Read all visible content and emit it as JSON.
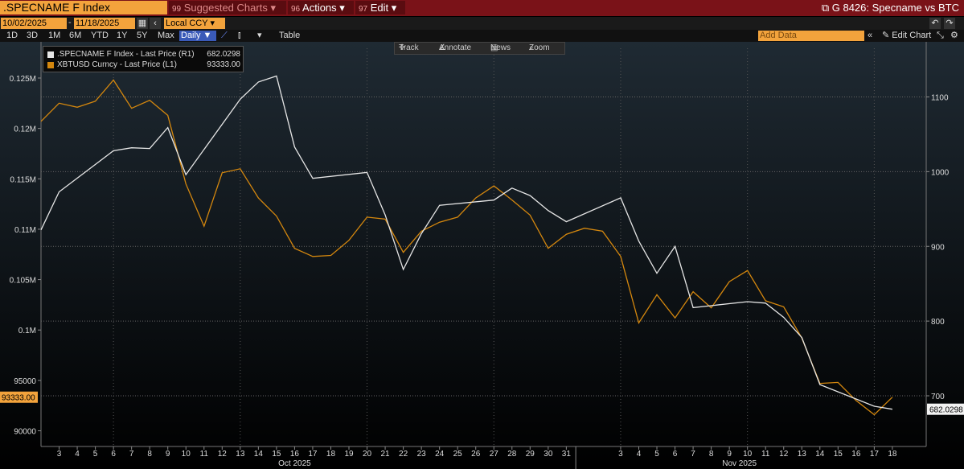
{
  "header": {
    "ticker": ".SPECNAME F Index",
    "suggested": {
      "num": "99",
      "label": "Suggested Charts"
    },
    "actions": {
      "num": "96",
      "label": "Actions"
    },
    "edit": {
      "num": "97",
      "label": "Edit"
    },
    "graph_title": "G 8426: Specname vs BTC"
  },
  "range": {
    "start": "10/02/2025",
    "sep": "-",
    "end": "11/18/2025",
    "currency": "Local CCY"
  },
  "periods": [
    "1D",
    "3D",
    "1M",
    "6M",
    "YTD",
    "1Y",
    "5Y",
    "Max"
  ],
  "frequency": "Daily",
  "table_label": "Table",
  "add_data_placeholder": "Add Data",
  "edit_chart_label": "Edit Chart",
  "tools": {
    "track": "Track",
    "annotate": "Annotate",
    "news": "News",
    "zoom": "Zoom"
  },
  "colors": {
    "index": "#e6e6e6",
    "btc": "#d4870e",
    "accent": "#f3a33c",
    "header": "#7a1218"
  },
  "legend": [
    {
      "label": ".SPECNAME F Index - Last Price (R1)",
      "value": "682.0298"
    },
    {
      "label": "XBTUSD Curncy - Last Price (L1)",
      "value": "93333.00"
    }
  ],
  "chart_data": {
    "type": "line",
    "x_day_labels": [
      "3",
      "4",
      "5",
      "6",
      "7",
      "8",
      "9",
      "10",
      "11",
      "12",
      "13",
      "14",
      "15",
      "16",
      "17",
      "18",
      "19",
      "20",
      "21",
      "22",
      "23",
      "24",
      "25",
      "26",
      "27",
      "28",
      "29",
      "30",
      "31",
      "3",
      "4",
      "5",
      "6",
      "7",
      "8",
      "9",
      "10",
      "11",
      "12",
      "13",
      "14",
      "15",
      "16",
      "17",
      "18"
    ],
    "month_labels": [
      "Oct 2025",
      "Nov 2025"
    ],
    "y_left_ticks": [
      "90000",
      "95000",
      "0.1M",
      "0.105M",
      "0.11M",
      "0.115M",
      "0.12M",
      "0.125M"
    ],
    "y_left_range": [
      87500,
      128500
    ],
    "y_right_ticks": [
      "700",
      "800",
      "900",
      "1000",
      "1100"
    ],
    "y_right_range": [
      660,
      1170
    ],
    "last_value_tags": {
      "left": "93333.00",
      "right": "682.0298"
    },
    "series": [
      {
        "name": ".SPECNAME F Index - Last Price (R1)",
        "axis": "right",
        "x": [
          "2025-10-02",
          "2025-10-03",
          "2025-10-06",
          "2025-10-07",
          "2025-10-08",
          "2025-10-09",
          "2025-10-10",
          "2025-10-13",
          "2025-10-14",
          "2025-10-15",
          "2025-10-16",
          "2025-10-17",
          "2025-10-20",
          "2025-10-21",
          "2025-10-22",
          "2025-10-23",
          "2025-10-24",
          "2025-10-27",
          "2025-10-28",
          "2025-10-29",
          "2025-10-30",
          "2025-10-31",
          "2025-11-03",
          "2025-11-04",
          "2025-11-05",
          "2025-11-06",
          "2025-11-07",
          "2025-11-10",
          "2025-11-11",
          "2025-11-12",
          "2025-11-13",
          "2025-11-14",
          "2025-11-17",
          "2025-11-18"
        ],
        "values": [
          922,
          973,
          1028,
          1032,
          1031,
          1059,
          996,
          1097,
          1120,
          1128,
          1033,
          991,
          999,
          942,
          869,
          917,
          955,
          962,
          978,
          968,
          948,
          933,
          965,
          907,
          864,
          900,
          818,
          826,
          824,
          805,
          778,
          715,
          686,
          682
        ]
      },
      {
        "name": "XBTUSD Curncy - Last Price (L1)",
        "axis": "left",
        "x": [
          "2025-10-02",
          "2025-10-03",
          "2025-10-04",
          "2025-10-05",
          "2025-10-06",
          "2025-10-07",
          "2025-10-08",
          "2025-10-09",
          "2025-10-10",
          "2025-10-11",
          "2025-10-12",
          "2025-10-13",
          "2025-10-14",
          "2025-10-15",
          "2025-10-16",
          "2025-10-17",
          "2025-10-18",
          "2025-10-19",
          "2025-10-20",
          "2025-10-21",
          "2025-10-22",
          "2025-10-23",
          "2025-10-24",
          "2025-10-25",
          "2025-10-26",
          "2025-10-27",
          "2025-10-28",
          "2025-10-29",
          "2025-10-30",
          "2025-10-31",
          "2025-11-01",
          "2025-11-02",
          "2025-11-03",
          "2025-11-04",
          "2025-11-05",
          "2025-11-06",
          "2025-11-07",
          "2025-11-08",
          "2025-11-09",
          "2025-11-10",
          "2025-11-11",
          "2025-11-12",
          "2025-11-13",
          "2025-11-14",
          "2025-11-15",
          "2025-11-16",
          "2025-11-17",
          "2025-11-18"
        ],
        "values": [
          120700,
          122500,
          122100,
          122700,
          124800,
          122000,
          122800,
          121300,
          114500,
          110300,
          115600,
          116000,
          113100,
          111300,
          108100,
          107300,
          107400,
          108900,
          111200,
          111000,
          107700,
          109800,
          110700,
          111200,
          113100,
          114300,
          112900,
          111400,
          108100,
          109500,
          110100,
          109800,
          107300,
          100700,
          103500,
          101200,
          103800,
          102200,
          104800,
          105900,
          102900,
          102300,
          99200,
          94700,
          94800,
          93000,
          91600,
          93333
        ]
      }
    ]
  }
}
